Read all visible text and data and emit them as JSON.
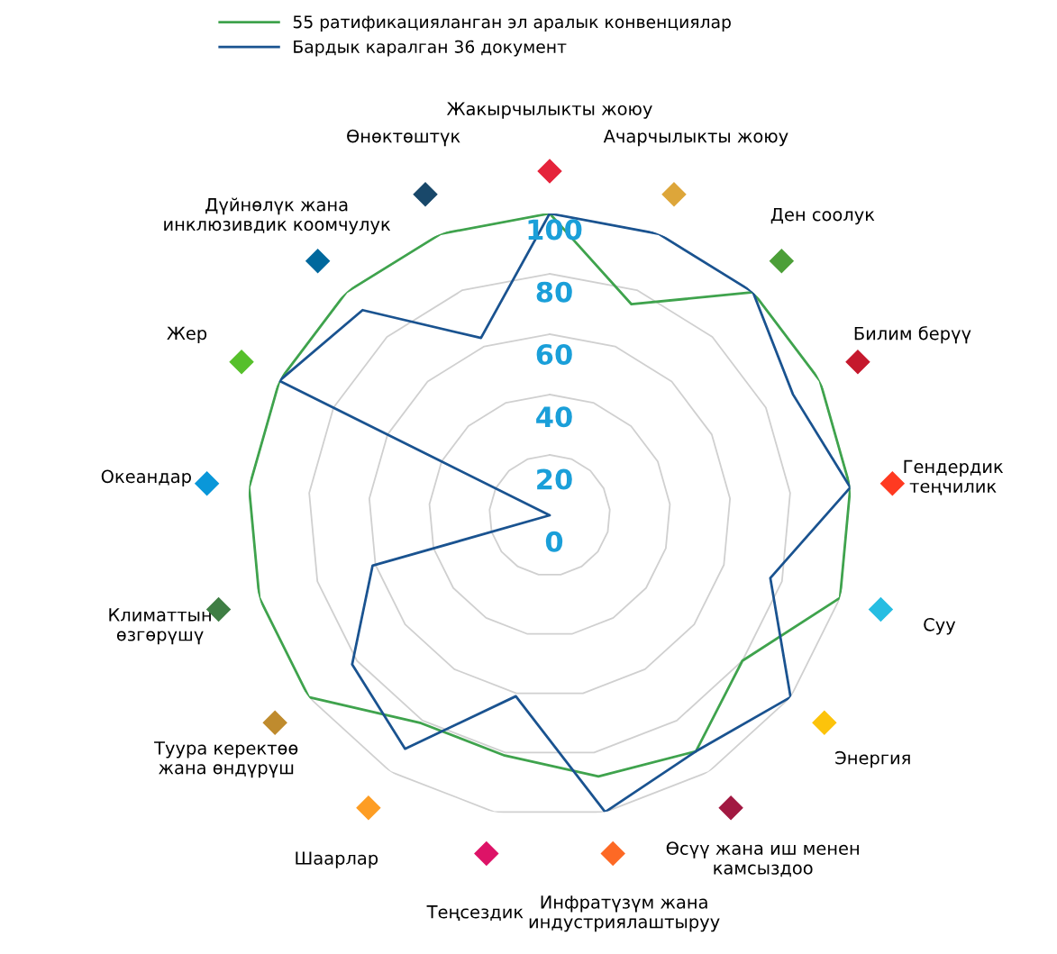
{
  "chart_data": {
    "type": "radar",
    "categories": [
      "Жакырчылыкты жоюу",
      "Ачарчылыкты жоюу",
      "Ден соолук",
      "Билим берүү",
      "Гендердик\nтеңчилик",
      "Суу",
      "Энергия",
      "Өсүү жана иш менен\nкамсыздоо",
      "Инфратүзүм жана\nиндустриялаштыруу",
      "Теңсездик",
      "Шаарлар",
      "Туура керектөө\nжана өндүрүш",
      "Климаттын\nөзгөрүшү",
      "Океандар",
      "Жер",
      "Дүйнөлүк жана\nинклюзивдик коомчулук",
      "Өнөктөштүк"
    ],
    "colors": [
      "#e5243b",
      "#dda63a",
      "#4c9f38",
      "#c5192d",
      "#ff3a21",
      "#26bde2",
      "#fcc30b",
      "#a21942",
      "#fd6925",
      "#dd1367",
      "#fd9d24",
      "#bf8b2e",
      "#3f7e44",
      "#0a97d9",
      "#56c02b",
      "#00689d",
      "#19486a"
    ],
    "series": [
      {
        "name": "55 ратификацияланган эл аралык конвенциялар",
        "color": "#3fa34d",
        "values": [
          100,
          75,
          100,
          100,
          100,
          100,
          80,
          92,
          88,
          81,
          81,
          100,
          100,
          100,
          100,
          100,
          100
        ]
      },
      {
        "name": "Бардык каралган 36 документ",
        "color": "#1a5390",
        "values": [
          100,
          100,
          100,
          90,
          100,
          76,
          100,
          92,
          100,
          61,
          91,
          82,
          61,
          0,
          100,
          92,
          63
        ]
      }
    ],
    "ylim": [
      0,
      100
    ],
    "yticks": [
      0,
      20,
      40,
      60,
      80,
      100
    ],
    "grid": true,
    "legend": "top"
  }
}
